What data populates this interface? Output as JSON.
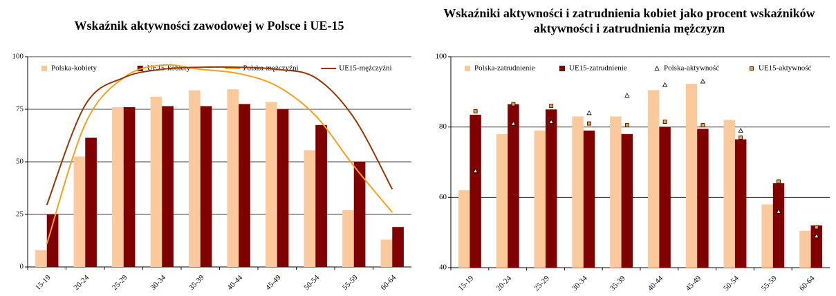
{
  "chart_data": [
    {
      "type": "bar",
      "title": "Wskaźnik aktywności zawodowej w Polsce i UE-15",
      "categories": [
        "15-19",
        "20-24",
        "25-29",
        "30-34",
        "35-39",
        "40-44",
        "45-49",
        "50-54",
        "55-59",
        "60-64"
      ],
      "ylim": [
        0,
        100
      ],
      "yticks": [
        0,
        25,
        50,
        75,
        100
      ],
      "grid": true,
      "legend": "top",
      "series": [
        {
          "name": "Polska-kobiety",
          "type": "bar",
          "color": "#fbc99b",
          "values": [
            8,
            52.5,
            76,
            81,
            84,
            84.5,
            78.5,
            55.5,
            27,
            13
          ]
        },
        {
          "name": "UE15-kobiety",
          "type": "bar",
          "color": "#800000",
          "values": [
            25,
            61.5,
            76,
            76.5,
            76.5,
            77.5,
            75,
            67.5,
            50,
            19
          ]
        },
        {
          "name": "Polska-mężczyźni",
          "type": "line",
          "color": "#f5a01a",
          "values": [
            11,
            68,
            90,
            96,
            94,
            92,
            86,
            72,
            48,
            26
          ]
        },
        {
          "name": "UE15-mężczyźni",
          "type": "line",
          "color": "#993300",
          "values": [
            29.5,
            77,
            90,
            94,
            95,
            95,
            94,
            90,
            71,
            37
          ]
        }
      ]
    },
    {
      "type": "bar",
      "title": "Wskaźniki aktywności i zatrudnienia kobiet jako procent wskaźników aktywności i zatrudnienia mężczyzn",
      "categories": [
        "15-19",
        "20-24",
        "25-29",
        "30-34",
        "35-39",
        "40-44",
        "45-49",
        "50-54",
        "55-59",
        "60-64"
      ],
      "ylim": [
        40,
        100
      ],
      "yticks": [
        40,
        60,
        80,
        100
      ],
      "grid": true,
      "legend": "top",
      "series": [
        {
          "name": "Polska-zatrudnienie",
          "type": "bar",
          "color": "#fbc99b",
          "values": [
            62,
            78,
            79,
            83,
            83,
            90.5,
            92.3,
            82,
            58,
            50.5
          ]
        },
        {
          "name": "UE15-zatrudnienie",
          "type": "bar",
          "color": "#800000",
          "values": [
            83.5,
            86.5,
            85,
            79,
            78,
            80,
            79.5,
            76.5,
            64,
            52
          ]
        },
        {
          "name": "Polska-aktywność",
          "type": "marker",
          "marker": "triangle",
          "color": "#ffffff",
          "values": [
            67.5,
            81,
            81.5,
            84,
            89,
            92,
            93,
            79,
            56,
            49
          ]
        },
        {
          "name": "UE15-aktywność",
          "type": "marker",
          "marker": "square",
          "color": "#f0a030",
          "values": [
            84.5,
            86.5,
            86,
            81,
            80.5,
            81.5,
            80.5,
            77,
            64.5,
            51.5
          ]
        }
      ]
    }
  ]
}
